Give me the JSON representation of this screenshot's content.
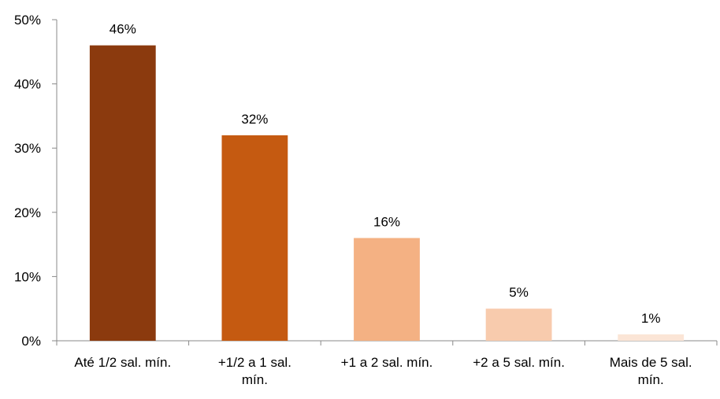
{
  "chart_data": {
    "type": "bar",
    "categories": [
      [
        "Até 1/2 sal. mín."
      ],
      [
        "+1/2 a 1 sal.",
        "mín."
      ],
      [
        "+1 a 2 sal. mín."
      ],
      [
        "+2 a 5 sal. mín."
      ],
      [
        "Mais de 5 sal.",
        "mín."
      ]
    ],
    "values": [
      46,
      32,
      16,
      5,
      1
    ],
    "data_labels": [
      "46%",
      "32%",
      "16%",
      "5%",
      "1%"
    ],
    "bar_colors": [
      "#8B3A0E",
      "#C55A11",
      "#F4B183",
      "#F8CBAD",
      "#FBE5D6"
    ],
    "ylim": [
      0,
      50
    ],
    "yticks": [
      0,
      10,
      20,
      30,
      40,
      50
    ],
    "ytick_labels": [
      "0%",
      "10%",
      "20%",
      "30%",
      "40%",
      "50%"
    ],
    "title": "",
    "xlabel": "",
    "ylabel": "",
    "grid": false,
    "axis_color": "#898989"
  }
}
